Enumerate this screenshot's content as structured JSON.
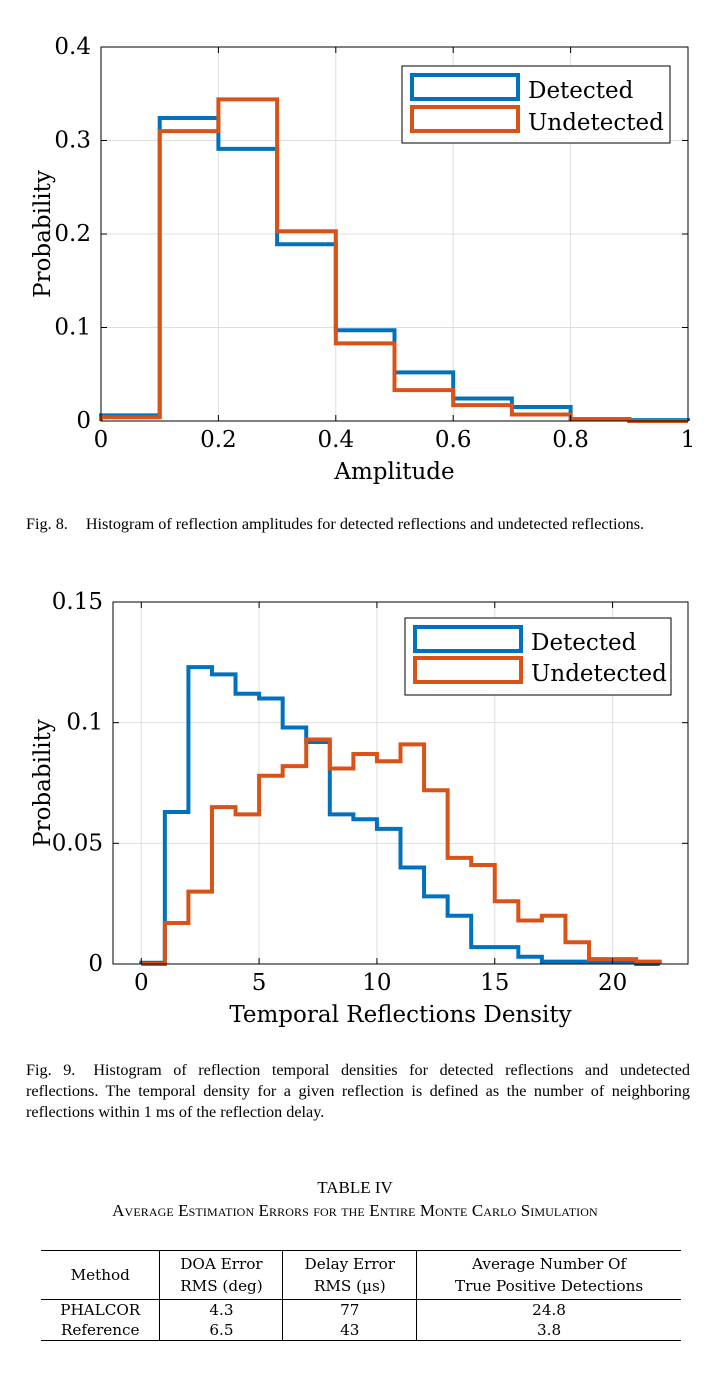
{
  "figure8": {
    "caption_label": "Fig. 8.",
    "caption_text": "Histogram of reflection amplitudes for detected reflections and undetected reflections."
  },
  "figure9": {
    "caption_label": "Fig. 9.",
    "caption_text": "Histogram of reflection temporal densities for detected reflections and undetected reflections. The temporal density for a given reflection is defined as the number of neighboring reflections within 1 ms of the reflection delay."
  },
  "table": {
    "label": "TABLE IV",
    "caption": "Average Estimation Errors for the Entire Monte Carlo Simulation",
    "headers": {
      "method": "Method",
      "doa_1": "DOA Error",
      "doa_2": "RMS (deg)",
      "delay_1": "Delay Error",
      "delay_2": "RMS (µs)",
      "avg_1": "Average Number Of",
      "avg_2": "True Positive Detections"
    },
    "rows": [
      {
        "method": "PHALCOR",
        "doa": "4.3",
        "delay": "77",
        "avg": "24.8"
      },
      {
        "method": "Reference",
        "doa": "6.5",
        "delay": "43",
        "avg": "3.8"
      }
    ]
  },
  "colors": {
    "detected": "#0072BD",
    "undetected": "#D95319",
    "grid": "#dfdfdf"
  },
  "chart_data": [
    {
      "type": "histogram-stairs",
      "xlabel": "Amplitude",
      "ylabel": "Probability",
      "xlim": [
        0,
        1
      ],
      "ylim": [
        0,
        0.4
      ],
      "xticks": [
        0,
        0.2,
        0.4,
        0.6,
        0.8,
        1
      ],
      "xtick_labels": [
        "0",
        "0.2",
        "0.4",
        "0.6",
        "0.8",
        "1"
      ],
      "yticks": [
        0,
        0.1,
        0.2,
        0.3,
        0.4
      ],
      "ytick_labels": [
        "0",
        "0.1",
        "0.2",
        "0.3",
        "0.4"
      ],
      "grid": true,
      "legend_position": "top-right",
      "bin_edges": [
        0,
        0.1,
        0.2,
        0.3,
        0.4,
        0.5,
        0.6,
        0.7,
        0.8,
        0.9,
        1.0
      ],
      "series": [
        {
          "name": "Detected",
          "color": "#0072BD",
          "values": [
            0.006,
            0.324,
            0.291,
            0.189,
            0.097,
            0.052,
            0.024,
            0.015,
            0.002,
            0.001
          ]
        },
        {
          "name": "Undetected",
          "color": "#D95319",
          "values": [
            0.004,
            0.31,
            0.344,
            0.203,
            0.083,
            0.033,
            0.017,
            0.007,
            0.002,
            0.0
          ]
        }
      ]
    },
    {
      "type": "histogram-stairs",
      "xlabel": "Temporal Reflections Density",
      "ylabel": "Probability",
      "xlim": [
        -1.2,
        23.2
      ],
      "ylim": [
        0,
        0.15
      ],
      "xticks": [
        0,
        5,
        10,
        15,
        20
      ],
      "xtick_labels": [
        "0",
        "5",
        "10",
        "15",
        "20"
      ],
      "yticks": [
        0,
        0.05,
        0.1,
        0.15
      ],
      "ytick_labels": [
        "0",
        "0.05",
        "0.1",
        "0.15"
      ],
      "grid": true,
      "legend_position": "top-right",
      "bin_edges": [
        0,
        1,
        2,
        3,
        4,
        5,
        6,
        7,
        8,
        9,
        10,
        11,
        12,
        13,
        14,
        15,
        16,
        17,
        18,
        19,
        20,
        21,
        22
      ],
      "series": [
        {
          "name": "Detected",
          "color": "#0072BD",
          "values": [
            0.0005,
            0.063,
            0.123,
            0.12,
            0.112,
            0.11,
            0.098,
            0.092,
            0.062,
            0.06,
            0.056,
            0.04,
            0.028,
            0.02,
            0.007,
            0.007,
            0.003,
            0.001,
            0.001,
            0.001,
            0.001,
            0.0
          ]
        },
        {
          "name": "Undetected",
          "color": "#D95319",
          "values": [
            0.0,
            0.017,
            0.03,
            0.065,
            0.062,
            0.078,
            0.082,
            0.093,
            0.081,
            0.087,
            0.084,
            0.091,
            0.072,
            0.044,
            0.041,
            0.026,
            0.018,
            0.02,
            0.009,
            0.002,
            0.002,
            0.001
          ]
        }
      ]
    }
  ]
}
